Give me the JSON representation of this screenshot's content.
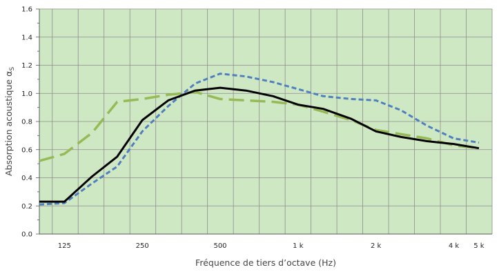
{
  "chart_data": {
    "type": "line",
    "title": "",
    "xlabel": "Fréquence de tiers d’octave (Hz)",
    "ylabel": "Absorption acoustique α",
    "ylabel_subscript": "S",
    "x": [
      100,
      125,
      160,
      200,
      250,
      315,
      400,
      500,
      630,
      800,
      1000,
      1250,
      1600,
      2000,
      2500,
      3150,
      4000,
      5000
    ],
    "x_tick_labels": [
      {
        "x": 125,
        "label": "125"
      },
      {
        "x": 250,
        "label": "250"
      },
      {
        "x": 500,
        "label": "500"
      },
      {
        "x": 1000,
        "label": "1 k"
      },
      {
        "x": 2000,
        "label": "2 k"
      },
      {
        "x": 4000,
        "label": "4 k"
      },
      {
        "x": 5000,
        "label": "5 k"
      }
    ],
    "y_ticks": [
      "0.0",
      "0.2",
      "0.4",
      "0.6",
      "0.8",
      "1.0",
      "1.2",
      "1.4",
      "1.6"
    ],
    "ylim": [
      0,
      1.6
    ],
    "xscale": "log (third-octave bands)",
    "grid": true,
    "legend": "none",
    "colors": {
      "plot_background": "#cfe8c4",
      "grid": "#8c8c8c"
    },
    "series": [
      {
        "color": "#000000",
        "style": "solid",
        "values": [
          0.23,
          0.23,
          0.41,
          0.55,
          0.81,
          0.95,
          1.02,
          1.04,
          1.02,
          0.98,
          0.92,
          0.89,
          0.82,
          0.73,
          0.69,
          0.66,
          0.64,
          0.61
        ]
      },
      {
        "color": "#4f7fbf",
        "style": "short-dash",
        "values": [
          0.21,
          0.22,
          0.36,
          0.48,
          0.73,
          0.91,
          1.07,
          1.14,
          1.12,
          1.08,
          1.03,
          0.98,
          0.96,
          0.95,
          0.88,
          0.77,
          0.68,
          0.65
        ]
      },
      {
        "color": "#97b956",
        "style": "long-dash",
        "values": [
          0.52,
          0.57,
          0.72,
          0.94,
          0.96,
          0.99,
          1.01,
          0.96,
          0.95,
          0.94,
          0.92,
          0.87,
          0.81,
          0.74,
          0.71,
          0.68,
          0.63,
          0.61
        ]
      }
    ]
  }
}
